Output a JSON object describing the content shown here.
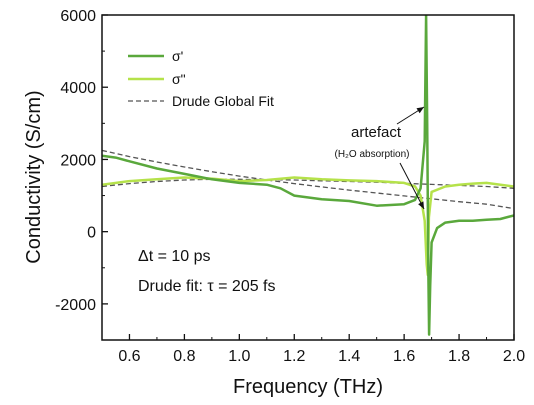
{
  "chart_data": {
    "type": "line",
    "xlabel": "Frequency (THz)",
    "ylabel": "Conductivity (S/cm)",
    "xlim": [
      0.5,
      2.0
    ],
    "ylim": [
      -3000,
      6000
    ],
    "xticks": [
      "0.6",
      "0.8",
      "1.0",
      "1.2",
      "1.4",
      "1.6",
      "1.8",
      "2.0"
    ],
    "yticks": [
      "-2000",
      "0",
      "2000",
      "4000",
      "6000"
    ],
    "grid": false,
    "legend_position": "top-left",
    "series": [
      {
        "name": "σ'",
        "color": "#5aa83c",
        "style": "solid",
        "points": [
          [
            0.5,
            2100
          ],
          [
            0.55,
            2050
          ],
          [
            0.6,
            1950
          ],
          [
            0.7,
            1750
          ],
          [
            0.8,
            1600
          ],
          [
            0.9,
            1450
          ],
          [
            1.0,
            1350
          ],
          [
            1.1,
            1300
          ],
          [
            1.15,
            1200
          ],
          [
            1.2,
            1000
          ],
          [
            1.3,
            900
          ],
          [
            1.4,
            850
          ],
          [
            1.5,
            720
          ],
          [
            1.6,
            760
          ],
          [
            1.64,
            880
          ],
          [
            1.66,
            1200
          ],
          [
            1.675,
            2500
          ],
          [
            1.68,
            6000
          ],
          [
            1.684,
            3000
          ],
          [
            1.688,
            -1000
          ],
          [
            1.691,
            -2850
          ],
          [
            1.695,
            -1500
          ],
          [
            1.7,
            -300
          ],
          [
            1.72,
            100
          ],
          [
            1.75,
            250
          ],
          [
            1.8,
            300
          ],
          [
            1.85,
            300
          ],
          [
            1.9,
            330
          ],
          [
            1.95,
            350
          ],
          [
            2.0,
            450
          ]
        ]
      },
      {
        "name": "σ\"",
        "color": "#b5e24a",
        "style": "solid",
        "points": [
          [
            0.5,
            1300
          ],
          [
            0.6,
            1400
          ],
          [
            0.7,
            1450
          ],
          [
            0.8,
            1500
          ],
          [
            0.9,
            1470
          ],
          [
            1.0,
            1400
          ],
          [
            1.1,
            1430
          ],
          [
            1.2,
            1500
          ],
          [
            1.3,
            1450
          ],
          [
            1.4,
            1420
          ],
          [
            1.5,
            1400
          ],
          [
            1.6,
            1350
          ],
          [
            1.64,
            1250
          ],
          [
            1.66,
            1000
          ],
          [
            1.675,
            300
          ],
          [
            1.682,
            -900
          ],
          [
            1.686,
            -1200
          ],
          [
            1.69,
            400
          ],
          [
            1.7,
            1100
          ],
          [
            1.75,
            1250
          ],
          [
            1.8,
            1300
          ],
          [
            1.85,
            1330
          ],
          [
            1.9,
            1350
          ],
          [
            2.0,
            1250
          ]
        ]
      },
      {
        "name": "Drude Global Fit",
        "color": "#555555",
        "style": "dashed",
        "points": [
          [
            0.5,
            2250
          ],
          [
            0.6,
            2080
          ],
          [
            0.7,
            1930
          ],
          [
            0.8,
            1790
          ],
          [
            0.9,
            1660
          ],
          [
            1.0,
            1540
          ],
          [
            1.1,
            1430
          ],
          [
            1.2,
            1330
          ],
          [
            1.3,
            1240
          ],
          [
            1.4,
            1150
          ],
          [
            1.5,
            1070
          ],
          [
            1.6,
            990
          ],
          [
            1.7,
            910
          ],
          [
            1.8,
            830
          ],
          [
            1.9,
            760
          ],
          [
            2.0,
            640
          ]
        ]
      },
      {
        "name": "Drude Global Fit (σ\")",
        "color": "#555555",
        "style": "dashed",
        "points": [
          [
            0.5,
            1250
          ],
          [
            0.6,
            1330
          ],
          [
            0.7,
            1390
          ],
          [
            0.8,
            1430
          ],
          [
            0.9,
            1450
          ],
          [
            1.0,
            1450
          ],
          [
            1.1,
            1440
          ],
          [
            1.2,
            1430
          ],
          [
            1.3,
            1410
          ],
          [
            1.4,
            1390
          ],
          [
            1.5,
            1370
          ],
          [
            1.6,
            1340
          ],
          [
            1.7,
            1310
          ],
          [
            1.8,
            1280
          ],
          [
            1.9,
            1250
          ],
          [
            2.0,
            1200
          ]
        ]
      }
    ],
    "annotations": {
      "artefact": "artefact",
      "artefact_sub": "(H₂O absorption)",
      "delta_t": "Δt = 10 ps",
      "drude_fit": "Drude fit: τ = 205 fs"
    }
  }
}
